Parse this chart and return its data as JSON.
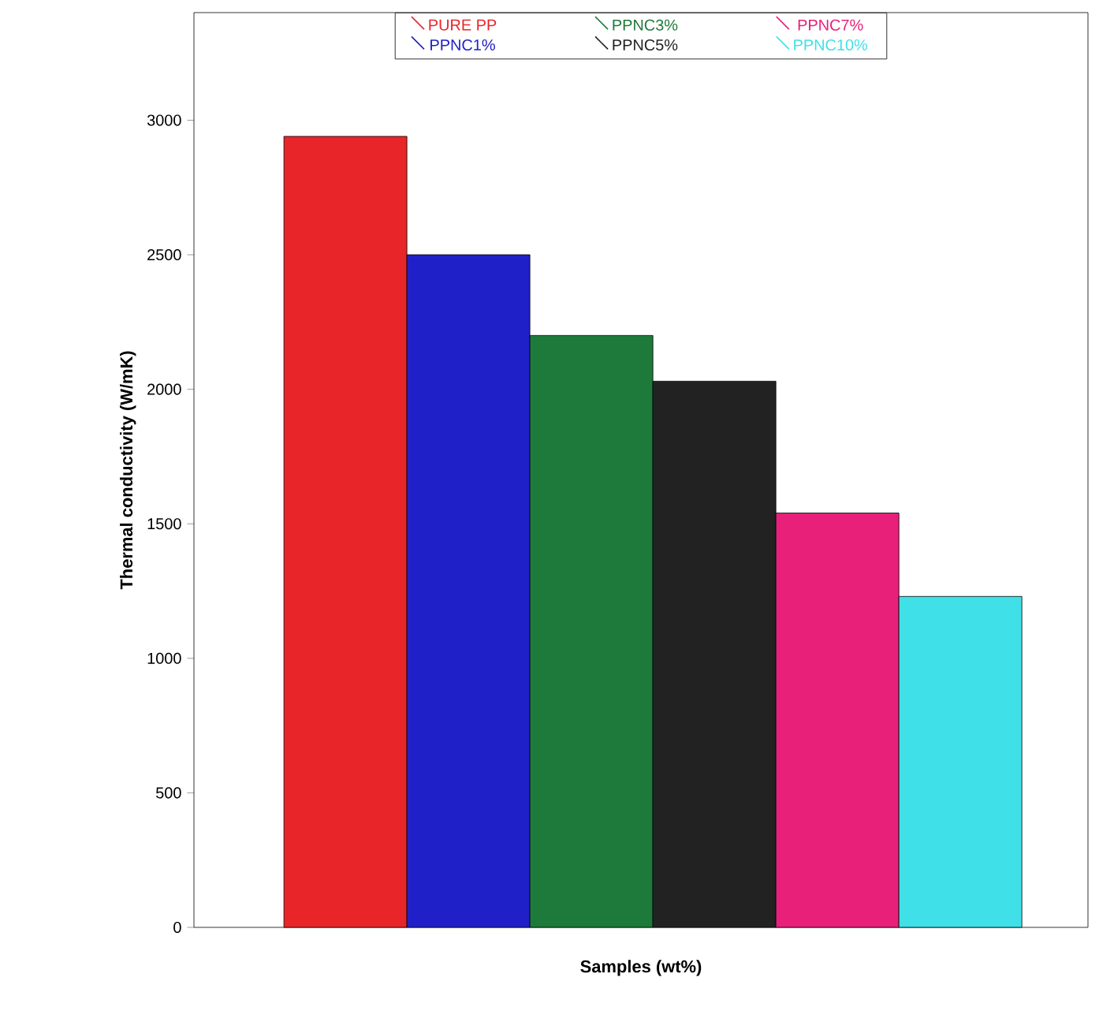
{
  "chart_data": {
    "type": "bar",
    "xlabel": "Samples (wt%)",
    "ylabel": "Thermal conductivity (W/mK)",
    "categories": [
      null
    ],
    "series": [
      {
        "name": "PURE PP",
        "color": "#e8262a",
        "values": [
          2940
        ]
      },
      {
        "name": "PPNC1%",
        "color": "#2020c8",
        "values": [
          2500
        ]
      },
      {
        "name": "PPNC3%",
        "color": "#1e7a3a",
        "values": [
          2200
        ]
      },
      {
        "name": "PPNC5%",
        "color": "#222222",
        "values": [
          2030
        ]
      },
      {
        "name": "PPNC7%",
        "color": "#e8207a",
        "values": [
          1540
        ]
      },
      {
        "name": "PPNC10%",
        "color": "#40e0e8",
        "values": [
          1230
        ]
      }
    ],
    "ylim": [
      0,
      3400
    ],
    "yticks": [
      0,
      500,
      1000,
      1500,
      2000,
      2500,
      3000
    ],
    "legend": "top",
    "grid": false
  }
}
